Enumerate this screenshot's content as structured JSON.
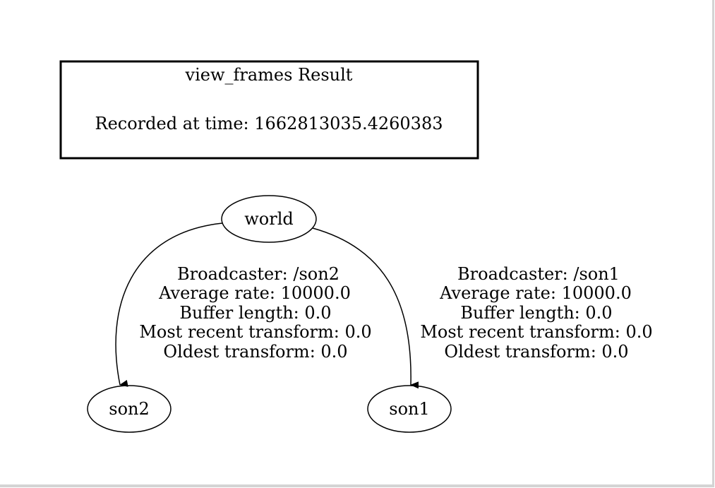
{
  "header": {
    "title": "view_frames Result",
    "recorded": "Recorded at time: 1662813035.4260383"
  },
  "nodes": {
    "world": "world",
    "son2": "son2",
    "son1": "son1"
  },
  "edges": {
    "son2": {
      "broadcaster": "Broadcaster: /son2",
      "rate": "Average rate: 10000.0",
      "buffer": "Buffer length: 0.0",
      "recent": "Most recent transform: 0.0",
      "oldest": "Oldest transform: 0.0"
    },
    "son1": {
      "broadcaster": "Broadcaster: /son1",
      "rate": "Average rate: 10000.0",
      "buffer": "Buffer length: 0.0",
      "recent": "Most recent transform: 0.0",
      "oldest": "Oldest transform: 0.0"
    }
  }
}
